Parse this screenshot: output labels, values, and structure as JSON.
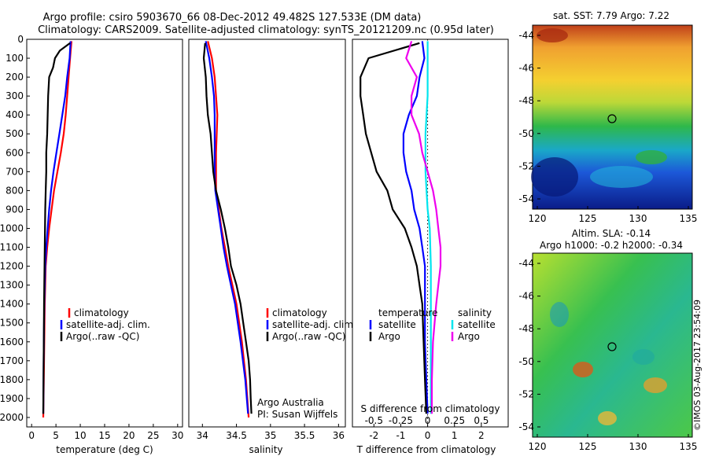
{
  "header": {
    "line1": "Argo profile: csiro 5903670_66 08-Dec-2012 49.482S 127.533E (DM data)",
    "line2": "Climatology: CARS2009. Satellite-adjusted climatology: synTS_20121209.nc (0.95d later)"
  },
  "colors": {
    "climatology": "#ff0000",
    "satellite": "#0000ff",
    "argo": "#000000",
    "salinity_satellite": "#00e5ee",
    "salinity_argo": "#ee00ee"
  },
  "legend": {
    "climatology": "climatology",
    "satellite_adj": "satellite-adj. clim.",
    "argo_raw": "Argo(..raw -QC)",
    "diff_temperature": "temperature",
    "diff_salinity": "salinity",
    "diff_satellite": "satellite",
    "diff_argo": "Argo"
  },
  "annotations": {
    "institute": "Argo Australia",
    "pi": "PI: Susan Wijffels",
    "copyright": "©IMOS 03-Aug-2017 23:54:09"
  },
  "maps": {
    "sst": {
      "title": "sat. SST: 7.79 Argo: 7.22",
      "xticks": [
        "120",
        "125",
        "130",
        "135"
      ],
      "yticks": [
        "-44",
        "-46",
        "-48",
        "-50",
        "-52",
        "-54"
      ]
    },
    "sla": {
      "title1": "Altim. SLA: -0.14",
      "title2": "Argo h1000: -0.2 h2000: -0.34",
      "xticks": [
        "120",
        "125",
        "130",
        "135"
      ],
      "yticks": [
        "-44",
        "-46",
        "-48",
        "-50",
        "-52",
        "-54"
      ]
    }
  },
  "chart_data": [
    {
      "type": "line",
      "xlabel": "temperature (deg C)",
      "xlim": [
        -1,
        31
      ],
      "ylim": [
        2050,
        0
      ],
      "xticks": [
        0,
        5,
        10,
        15,
        20,
        25,
        30
      ],
      "yticks": [
        0,
        100,
        200,
        300,
        400,
        500,
        600,
        700,
        800,
        900,
        1000,
        1100,
        1200,
        1300,
        1400,
        1500,
        1600,
        1700,
        1800,
        1900,
        2000
      ],
      "series": [
        {
          "name": "climatology",
          "color": "#ff0000",
          "depth": [
            10,
            100,
            200,
            300,
            400,
            500,
            600,
            700,
            800,
            900,
            1000,
            1100,
            1200,
            1300,
            1400,
            1600,
            1800,
            2000
          ],
          "values": [
            8.2,
            7.9,
            7.6,
            7.3,
            7.0,
            6.6,
            6.0,
            5.3,
            4.6,
            4.1,
            3.6,
            3.2,
            2.9,
            2.8,
            2.7,
            2.6,
            2.5,
            2.4
          ]
        },
        {
          "name": "satellite-adj. clim.",
          "color": "#0000ff",
          "depth": [
            10,
            100,
            200,
            300,
            400,
            500,
            600,
            700,
            800,
            900,
            1000,
            1100,
            1200,
            1300,
            1400,
            1600,
            1800,
            1980
          ],
          "values": [
            8.0,
            7.8,
            7.3,
            6.9,
            6.3,
            5.7,
            5.1,
            4.5,
            4.0,
            3.6,
            3.3,
            3.0,
            2.8,
            2.7,
            2.6,
            2.5,
            2.45,
            2.4
          ]
        },
        {
          "name": "Argo(..raw -QC)",
          "color": "#000000",
          "depth": [
            20,
            60,
            100,
            150,
            200,
            300,
            400,
            500,
            600,
            700,
            800,
            900,
            1000,
            1100,
            1200,
            1300,
            1400,
            1600,
            1800,
            1980
          ],
          "values": [
            7.9,
            5.8,
            4.8,
            4.4,
            3.6,
            3.4,
            3.3,
            3.2,
            3.0,
            3.0,
            2.9,
            2.8,
            2.75,
            2.7,
            2.65,
            2.6,
            2.55,
            2.5,
            2.45,
            2.4
          ]
        }
      ]
    },
    {
      "type": "line",
      "xlabel": "salinity",
      "xlim": [
        33.8,
        36.1
      ],
      "ylim": [
        2050,
        0
      ],
      "xticks": [
        34,
        34.5,
        35,
        35.5,
        36
      ],
      "series": [
        {
          "name": "climatology",
          "color": "#ff0000",
          "depth": [
            10,
            100,
            200,
            300,
            400,
            500,
            600,
            700,
            800,
            900,
            1000,
            1100,
            1200,
            1300,
            1400,
            1600,
            1800,
            2000
          ],
          "values": [
            34.08,
            34.14,
            34.18,
            34.2,
            34.22,
            34.21,
            34.2,
            34.2,
            34.2,
            34.24,
            34.28,
            34.33,
            34.38,
            34.44,
            34.5,
            34.58,
            34.64,
            34.68
          ]
        },
        {
          "name": "satellite-adj. clim.",
          "color": "#0000ff",
          "depth": [
            10,
            100,
            200,
            300,
            400,
            500,
            600,
            700,
            800,
            900,
            1000,
            1100,
            1200,
            1300,
            1400,
            1600,
            1800,
            1980
          ],
          "values": [
            34.05,
            34.1,
            34.14,
            34.17,
            34.18,
            34.18,
            34.18,
            34.18,
            34.19,
            34.23,
            34.27,
            34.31,
            34.36,
            34.42,
            34.48,
            34.56,
            34.63,
            34.67
          ]
        },
        {
          "name": "Argo(..raw -QC)",
          "color": "#000000",
          "depth": [
            20,
            100,
            200,
            300,
            400,
            500,
            600,
            700,
            800,
            900,
            1000,
            1100,
            1200,
            1300,
            1400,
            1500,
            1600,
            1700,
            1800,
            1900,
            1980
          ],
          "values": [
            34.04,
            34.02,
            34.05,
            34.06,
            34.08,
            34.12,
            34.14,
            34.16,
            34.2,
            34.27,
            34.33,
            34.38,
            34.42,
            34.5,
            34.56,
            34.6,
            34.64,
            34.68,
            34.7,
            34.71,
            34.72
          ]
        }
      ]
    },
    {
      "type": "line",
      "xlabel": "T difference from climatology",
      "x2label": "S difference from climatology",
      "xlim": [
        -2.8,
        3.0
      ],
      "x2lim": [
        -0.7,
        0.75
      ],
      "ylim": [
        2050,
        0
      ],
      "xticks": [
        -2,
        -1,
        0,
        1,
        2
      ],
      "x2ticks": [
        -0.5,
        -0.25,
        0,
        0.25,
        0.5
      ],
      "temperature_series": [
        {
          "name": "satellite",
          "color": "#0000ff",
          "depth": [
            10,
            100,
            200,
            300,
            400,
            500,
            600,
            700,
            800,
            900,
            1000,
            1100,
            1200,
            1300,
            1400,
            1600,
            1800,
            1980
          ],
          "values": [
            -0.2,
            -0.12,
            -0.3,
            -0.4,
            -0.7,
            -0.9,
            -0.9,
            -0.8,
            -0.6,
            -0.5,
            -0.3,
            -0.2,
            -0.1,
            -0.1,
            -0.1,
            -0.1,
            -0.05,
            0
          ]
        },
        {
          "name": "Argo",
          "color": "#000000",
          "depth": [
            20,
            100,
            200,
            300,
            400,
            500,
            600,
            700,
            800,
            900,
            1000,
            1100,
            1200,
            1300,
            1400,
            1600,
            1800,
            1980
          ],
          "values": [
            -0.3,
            -2.2,
            -2.5,
            -2.5,
            -2.4,
            -2.3,
            -2.1,
            -1.9,
            -1.5,
            -1.3,
            -0.85,
            -0.6,
            -0.4,
            -0.3,
            -0.2,
            -0.15,
            -0.1,
            -0.05
          ]
        }
      ],
      "salinity_series": [
        {
          "name": "satellite",
          "color": "#00e5ee",
          "depth": [
            10,
            100,
            200,
            300,
            400,
            500,
            600,
            700,
            800,
            900,
            1000,
            1200,
            1400,
            1600,
            1800,
            1980
          ],
          "values": [
            0.0,
            0.0,
            0.0,
            0.0,
            -0.01,
            -0.02,
            -0.02,
            -0.02,
            -0.01,
            0.0,
            0.02,
            0.03,
            0.03,
            0.03,
            0.03,
            0.03
          ]
        },
        {
          "name": "Argo",
          "color": "#ee00ee",
          "depth": [
            10,
            100,
            200,
            300,
            400,
            500,
            600,
            700,
            800,
            900,
            1000,
            1100,
            1200,
            1300,
            1400,
            1600,
            1800,
            1980
          ],
          "values": [
            -0.15,
            -0.2,
            -0.1,
            -0.15,
            -0.15,
            -0.08,
            -0.05,
            0.0,
            0.05,
            0.08,
            0.1,
            0.12,
            0.12,
            0.1,
            0.08,
            0.05,
            0.04,
            0.04
          ]
        }
      ]
    }
  ]
}
